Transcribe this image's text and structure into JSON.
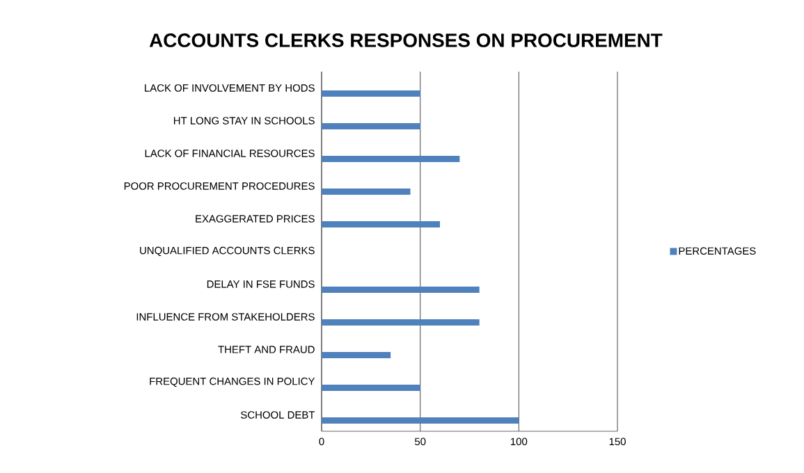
{
  "chart_data": {
    "type": "bar",
    "orientation": "horizontal",
    "title": "ACCOUNTS CLERKS RESPONSES ON PROCUREMENT",
    "categories": [
      "LACK OF INVOLVEMENT BY HODS",
      "HT LONG STAY IN SCHOOLS",
      "LACK OF FINANCIAL RESOURCES",
      "POOR PROCUREMENT PROCEDURES",
      "EXAGGERATED PRICES",
      "UNQUALIFIED ACCOUNTS CLERKS",
      "DELAY IN FSE FUNDS",
      "INFLUENCE FROM STAKEHOLDERS",
      "THEFT AND FRAUD",
      "FREQUENT CHANGES IN POLICY",
      "SCHOOL DEBT"
    ],
    "series": [
      {
        "name": "PERCENTAGES",
        "color": "#4f81bd",
        "values": [
          50,
          50,
          70,
          45,
          60,
          0,
          80,
          80,
          35,
          50,
          100
        ]
      }
    ],
    "xlim": [
      0,
      150
    ],
    "xticks": [
      0,
      50,
      100,
      150
    ],
    "grid": "x",
    "legend": "right"
  }
}
